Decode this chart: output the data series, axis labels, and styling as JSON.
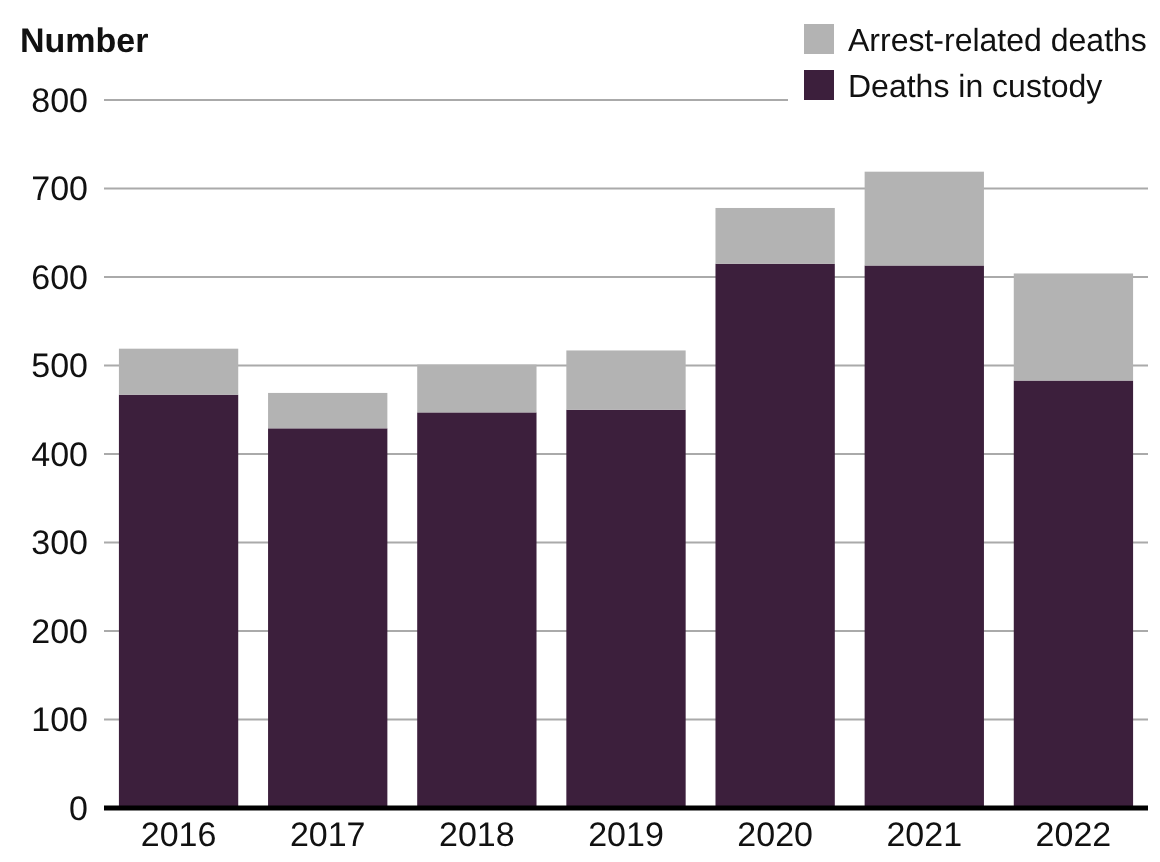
{
  "chart_data": {
    "type": "bar",
    "stacked": true,
    "ylabel": "Number",
    "categories": [
      "2016",
      "2017",
      "2018",
      "2019",
      "2020",
      "2021",
      "2022"
    ],
    "series": [
      {
        "name": "Deaths in custody",
        "color": "#3c1f3c",
        "values": [
          467,
          429,
          447,
          450,
          615,
          613,
          483
        ]
      },
      {
        "name": "Arrest-related deaths",
        "color": "#b3b3b3",
        "values": [
          52,
          40,
          54,
          67,
          63,
          106,
          121
        ]
      }
    ],
    "ylim": [
      0,
      800
    ],
    "yticks": [
      0,
      100,
      200,
      300,
      400,
      500,
      600,
      700,
      800
    ],
    "grid": "y",
    "legend": "top right"
  }
}
